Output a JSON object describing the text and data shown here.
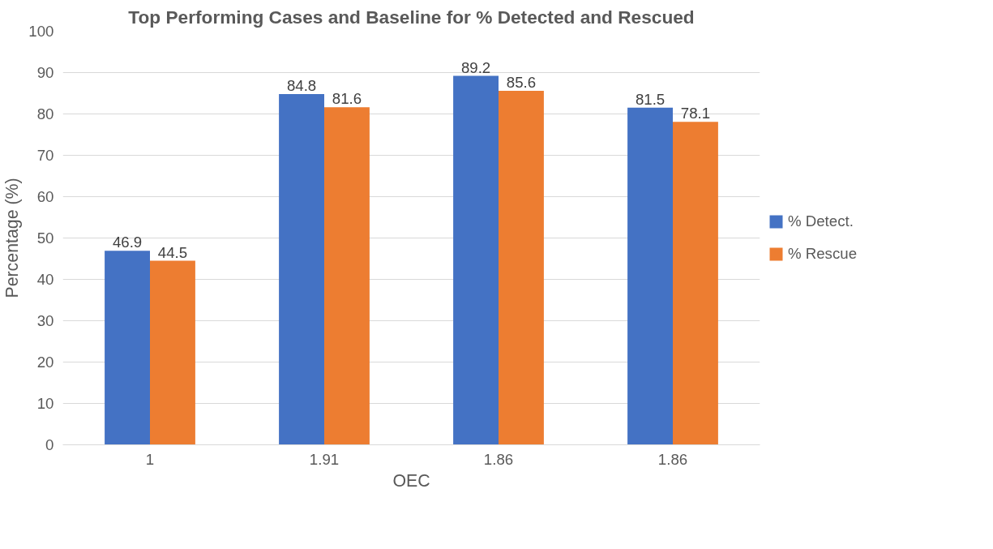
{
  "chart_data": {
    "type": "bar",
    "title": "Top Performing Cases and Baseline for % Detected and Rescued",
    "xlabel": "OEC",
    "ylabel": "Percentage (%)",
    "categories": [
      "1",
      "1.91",
      "1.86",
      "1.86"
    ],
    "series": [
      {
        "name": "% Detect.",
        "color": "#4472c4",
        "values": [
          46.9,
          84.8,
          89.2,
          81.5
        ]
      },
      {
        "name": "% Rescue",
        "color": "#ed7d31",
        "values": [
          44.5,
          81.6,
          85.6,
          78.1
        ]
      }
    ],
    "ylim": [
      0,
      100
    ],
    "yticks": [
      0,
      10,
      20,
      30,
      40,
      50,
      60,
      70,
      80,
      90,
      100
    ],
    "grid": "y",
    "legend": "right",
    "data_labels": true
  }
}
